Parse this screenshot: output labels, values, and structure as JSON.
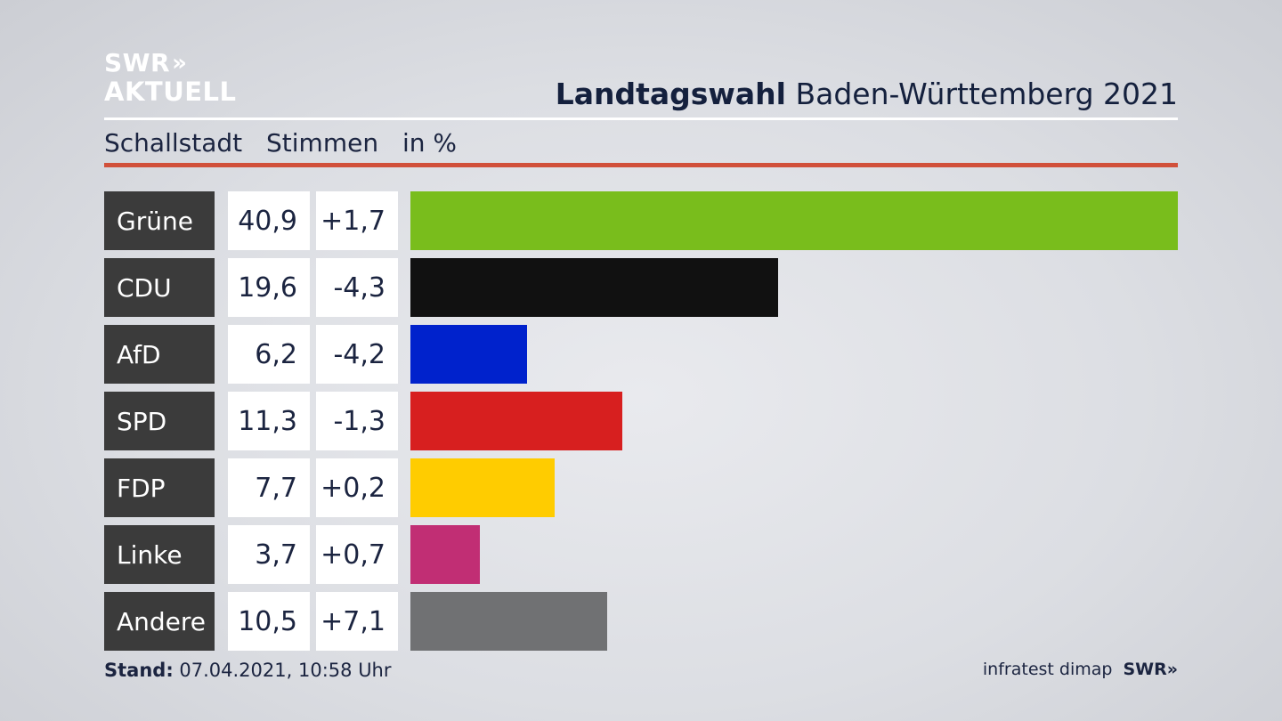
{
  "logo": {
    "line1": "SWR",
    "line2": "AKTUELL",
    "chevrons": "»"
  },
  "header": {
    "title_bold": "Landtagswahl",
    "title_rest": "Baden-Württemberg 2021"
  },
  "subtitle": {
    "place": "Schallstadt",
    "measure": "Stimmen",
    "unit": "in %"
  },
  "chart_data": {
    "type": "bar",
    "orientation": "horizontal",
    "categories": [
      "Grüne",
      "CDU",
      "AfD",
      "SPD",
      "FDP",
      "Linke",
      "Andere"
    ],
    "series": [
      {
        "values": [
          40.9,
          19.6,
          6.2,
          11.3,
          7.7,
          3.7,
          10.5
        ]
      }
    ],
    "changes": [
      1.7,
      -4.3,
      -4.2,
      -1.3,
      0.2,
      0.7,
      7.1
    ],
    "value_labels": [
      "40,9",
      "19,6",
      "6,2",
      "11,3",
      "7,7",
      "3,7",
      "10,5"
    ],
    "change_labels": [
      "+1,7",
      "-4,3",
      "-4,2",
      "-1,3",
      "+0,2",
      "+0,7",
      "+7,1"
    ],
    "colors": [
      "#79bd1c",
      "#111111",
      "#0022cc",
      "#d71f1f",
      "#ffcc00",
      "#c12e74",
      "#707173"
    ],
    "xlim": [
      0,
      40.9
    ]
  },
  "footer": {
    "stand_label": "Stand:",
    "stand_value": "07.04.2021, 10:58 Uhr",
    "source": "infratest dimap",
    "brand": "SWR»"
  }
}
